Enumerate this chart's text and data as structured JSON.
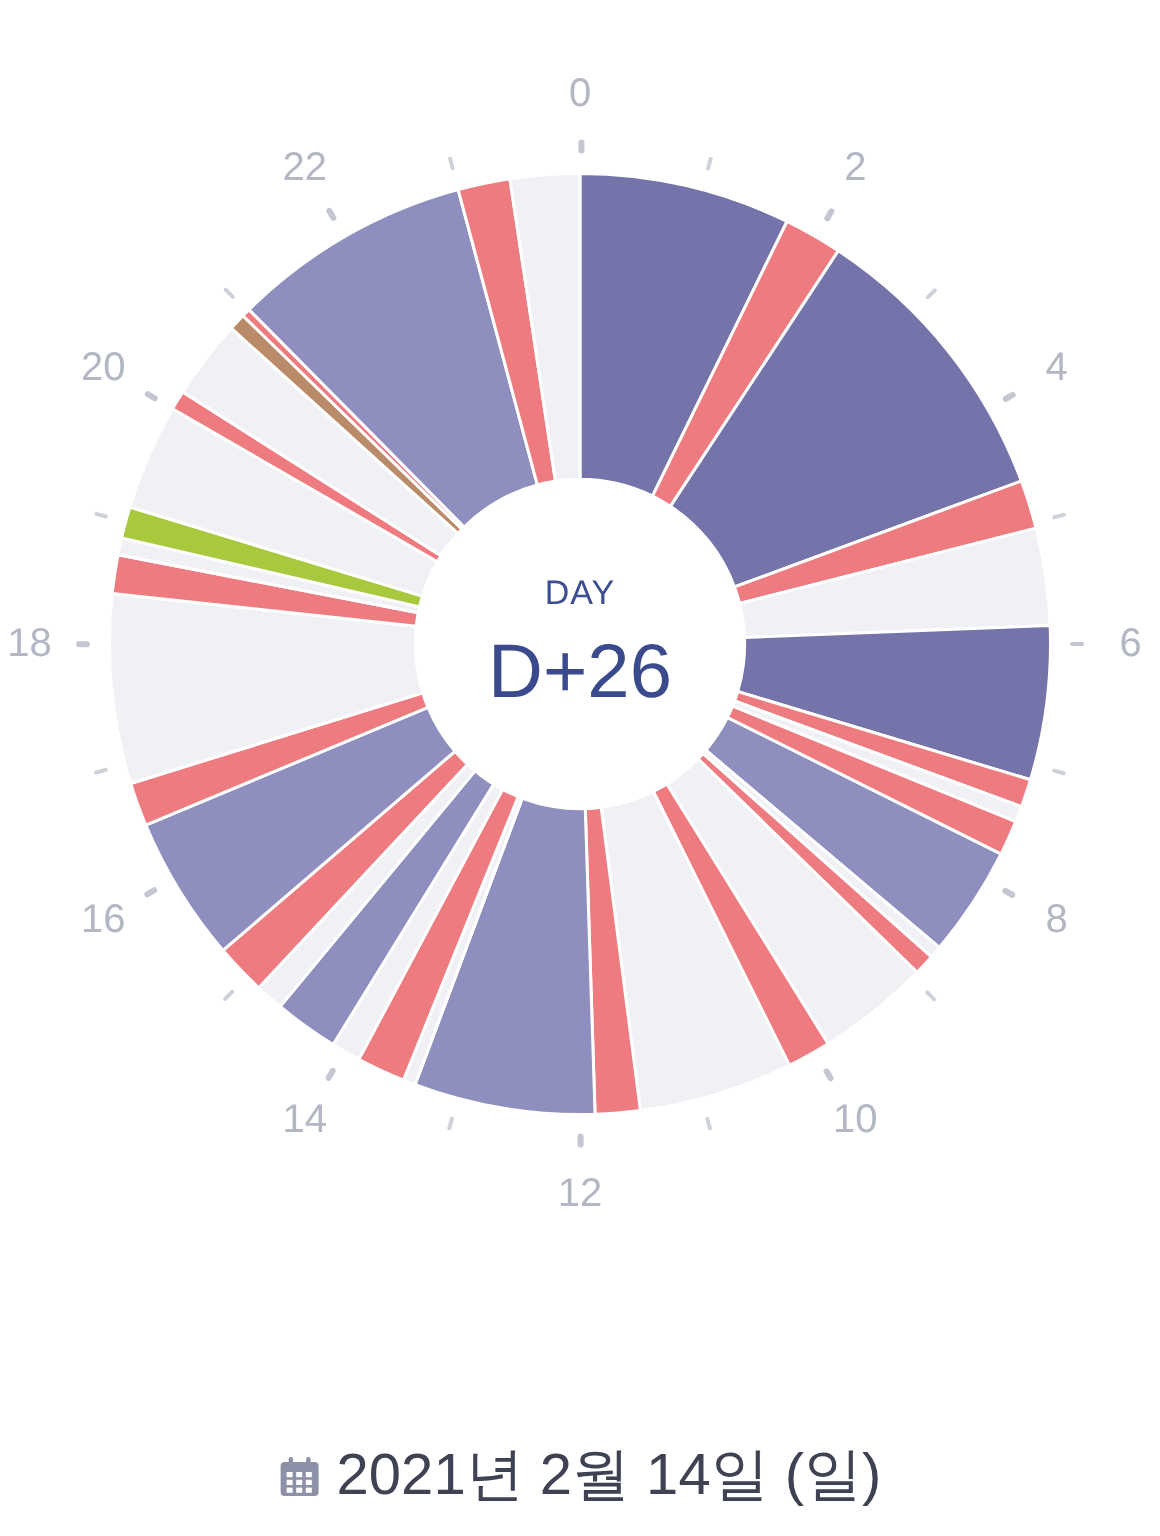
{
  "chart_data": {
    "type": "donut",
    "title": "D+26",
    "subtitle": "DAY",
    "annotations": [
      "2021년 2월 14일 (일)",
      "0",
      "2",
      "4",
      "6",
      "8",
      "10",
      "12",
      "14",
      "16",
      "18",
      "20",
      "22"
    ],
    "categories": [
      null,
      null,
      null,
      null,
      null,
      null,
      null,
      null,
      null,
      null,
      null,
      null,
      null,
      null,
      null,
      null,
      null,
      null,
      null,
      null,
      null,
      null,
      null,
      null,
      null,
      null,
      null,
      null,
      null,
      null,
      null,
      null,
      null,
      null,
      null,
      null,
      null
    ],
    "values": [
      7.25,
      2.0,
      10.12,
      1.67,
      3.33,
      5.29,
      0.96,
      0.54,
      1.21,
      3.79,
      0.42,
      0.71,
      3.87,
      1.5,
      5.29,
      1.54,
      6.21,
      0.42,
      1.67,
      1.0,
      2.21,
      0.96,
      1.75,
      5.0,
      1.5,
      6.5,
      1.33,
      0.58,
      1.08,
      3.63,
      0.67,
      2.71,
      0.58,
      0.29,
      8.25,
      1.79,
      2.38
    ],
    "colors": [
      "#7473aa",
      "#ee7b80",
      "#7473aa",
      "#ee7b80",
      "#eff1f5",
      "#7473aa",
      "#ee7b80",
      "#eff1f5",
      "#ee7b80",
      "#8f8fbf",
      "#eff1f5",
      "#ee7b80",
      "#eff1f5",
      "#ee7b80",
      "#eff1f5",
      "#ee7b80",
      "#8f8fbf",
      "#eff1f5",
      "#ee7b80",
      "#eff1f5",
      "#8f8fbf",
      "#eff1f5",
      "#ee7b80",
      "#8f8fbf",
      "#ee7b80",
      "#eff1f5",
      "#ee7b80",
      "#eff1f5",
      "#a8c83e",
      "#eff1f5",
      "#ee7b80",
      "#eff1f5",
      "#b98b69",
      "#ee7b80",
      "#8f8fbf",
      "#ee7b80",
      "#eff1f5"
    ]
  }
}
